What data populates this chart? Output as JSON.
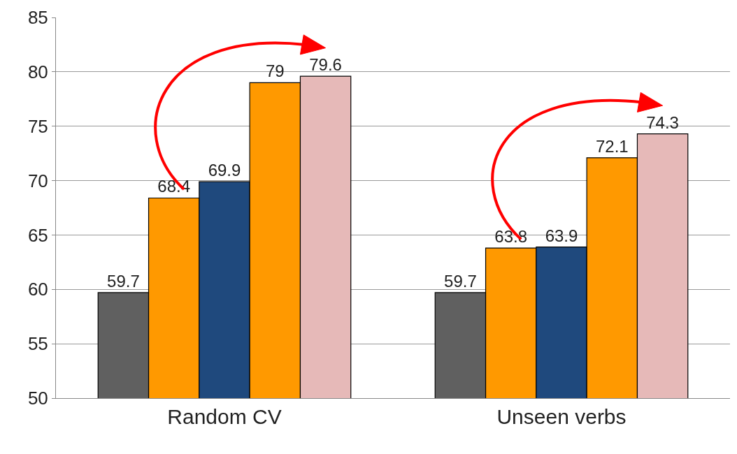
{
  "chart_data": {
    "type": "bar",
    "categories": [
      "Random CV",
      "Unseen verbs"
    ],
    "series": [
      {
        "color": "#606060",
        "values": [
          59.7,
          59.7
        ]
      },
      {
        "color": "#ff9900",
        "values": [
          68.4,
          63.8
        ]
      },
      {
        "color": "#1f497d",
        "values": [
          69.9,
          63.9
        ]
      },
      {
        "color": "#ff9900",
        "values": [
          79,
          72.1
        ]
      },
      {
        "color": "#e6b9b8",
        "values": [
          79.6,
          74.3
        ]
      }
    ],
    "ylim": [
      50,
      85
    ],
    "yticks": [
      50,
      55,
      60,
      65,
      70,
      75,
      80,
      85
    ],
    "grid": "y",
    "data_labels": true
  }
}
